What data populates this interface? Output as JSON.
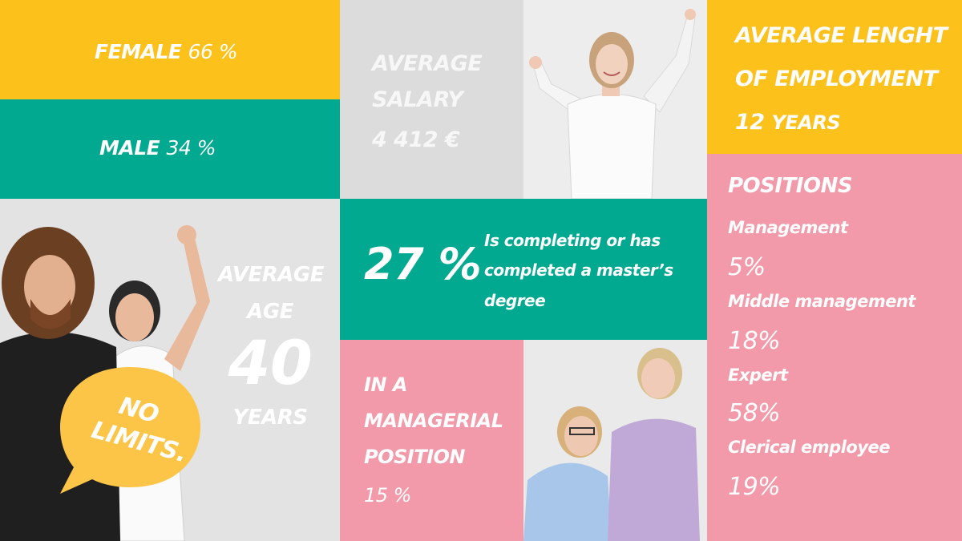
{
  "female": {
    "label": "FEMALE",
    "value": "66 %"
  },
  "male": {
    "label": "MALE",
    "value": "34 %"
  },
  "salary": {
    "line1": "AVERAGE",
    "line2": "SALARY",
    "value": "4 412 €"
  },
  "employment": {
    "line1": "AVERAGE LENGHT",
    "line2": "OF EMPLOYMENT",
    "value": "12",
    "unit": "YEARS"
  },
  "age": {
    "line1": "AVERAGE",
    "line2": "AGE",
    "value": "40",
    "unit": "YEARS"
  },
  "sign": {
    "line1": "NO",
    "line2": "LIMITS."
  },
  "masters": {
    "percent": "27 %",
    "line1": "Is completing or has",
    "line2": "completed a master’s",
    "line3": "degree"
  },
  "managerial": {
    "line1": "IN A",
    "line2": "MANAGERIAL",
    "line3": "POSITION",
    "value": "15 %"
  },
  "positions": {
    "title": "POSITIONS",
    "items": [
      {
        "label": "Management",
        "value": "5%"
      },
      {
        "label": "Middle management",
        "value": "18%"
      },
      {
        "label": "Expert",
        "value": "58%"
      },
      {
        "label": "Clerical employee",
        "value": "19%"
      }
    ]
  },
  "colors": {
    "yellow": "#fdc11c",
    "green": "#00a98f",
    "pink": "#f29aaa",
    "grey": "#dcdcdc"
  }
}
